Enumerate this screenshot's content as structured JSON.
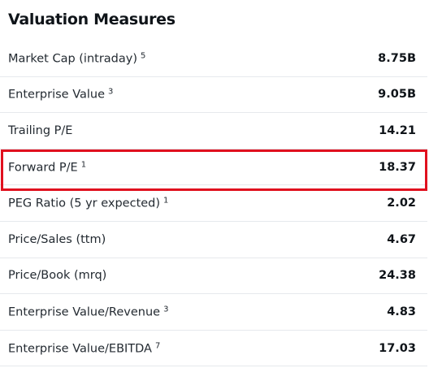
{
  "title": "Valuation Measures",
  "rows": [
    {
      "label": "Market Cap (intraday)",
      "footnote": "5",
      "value": "8.75B"
    },
    {
      "label": "Enterprise Value",
      "footnote": "3",
      "value": "9.05B"
    },
    {
      "label": "Trailing P/E",
      "footnote": "",
      "value": "14.21"
    },
    {
      "label": "Forward P/E",
      "footnote": "1",
      "value": "18.37"
    },
    {
      "label": "PEG Ratio (5 yr expected)",
      "footnote": "1",
      "value": "2.02"
    },
    {
      "label": "Price/Sales (ttm)",
      "footnote": "",
      "value": "4.67"
    },
    {
      "label": "Price/Book (mrq)",
      "footnote": "",
      "value": "24.38"
    },
    {
      "label": "Enterprise Value/Revenue",
      "footnote": "3",
      "value": "4.83"
    },
    {
      "label": "Enterprise Value/EBITDA",
      "footnote": "7",
      "value": "17.03"
    }
  ],
  "highlighted_row": "Forward P/E",
  "highlight_color": "#e0101e"
}
